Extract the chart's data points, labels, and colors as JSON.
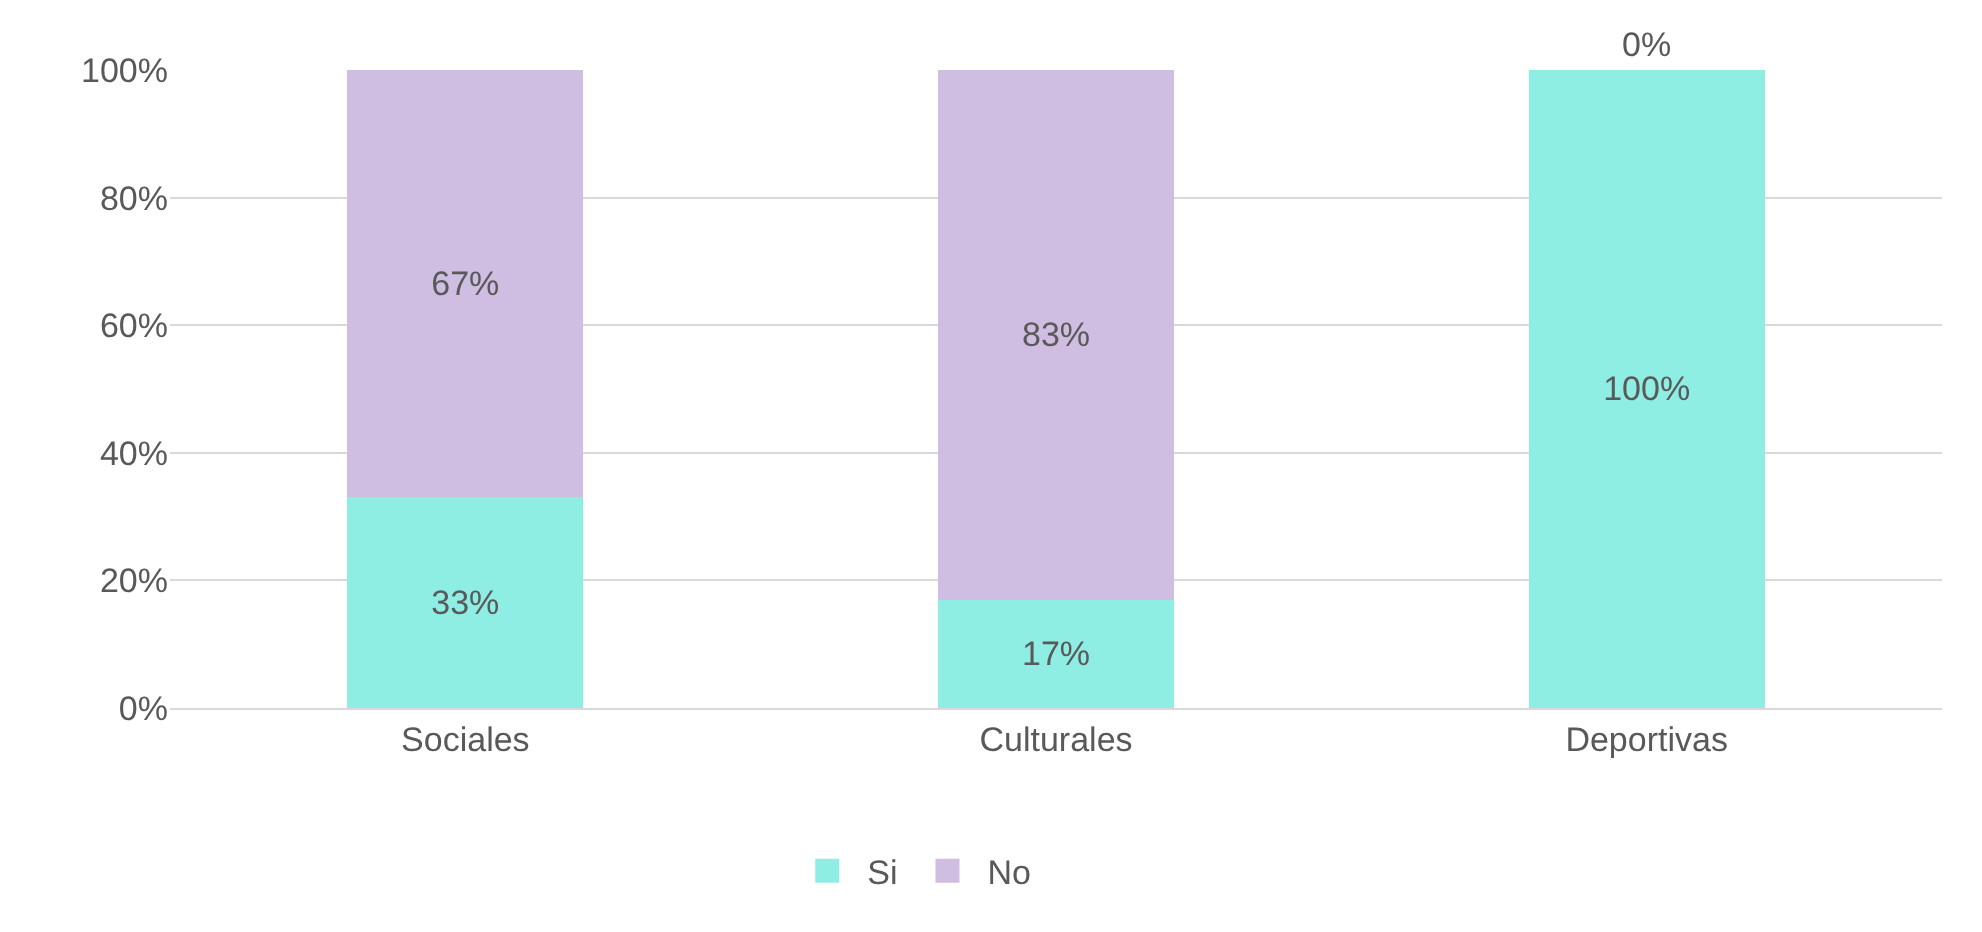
{
  "chart_data": {
    "type": "bar",
    "stacked": true,
    "categories": [
      "Sociales",
      "Culturales",
      "Deportivas"
    ],
    "series": [
      {
        "name": "Si",
        "color": "#8eeee4",
        "values": [
          33,
          17,
          100
        ],
        "value_labels": [
          "33%",
          "17%",
          "100%"
        ]
      },
      {
        "name": "No",
        "color": "#d0bde2",
        "values": [
          67,
          83,
          0
        ],
        "value_labels": [
          "67%",
          "83%",
          "0%"
        ]
      }
    ],
    "ylim": [
      0,
      100
    ],
    "yticks": [
      {
        "value": 0,
        "label": "0%"
      },
      {
        "value": 20,
        "label": "20%"
      },
      {
        "value": 40,
        "label": "40%"
      },
      {
        "value": 60,
        "label": "60%"
      },
      {
        "value": 80,
        "label": "80%"
      },
      {
        "value": 100,
        "label": "100%"
      }
    ],
    "grid": "y",
    "legend": "bottom"
  }
}
